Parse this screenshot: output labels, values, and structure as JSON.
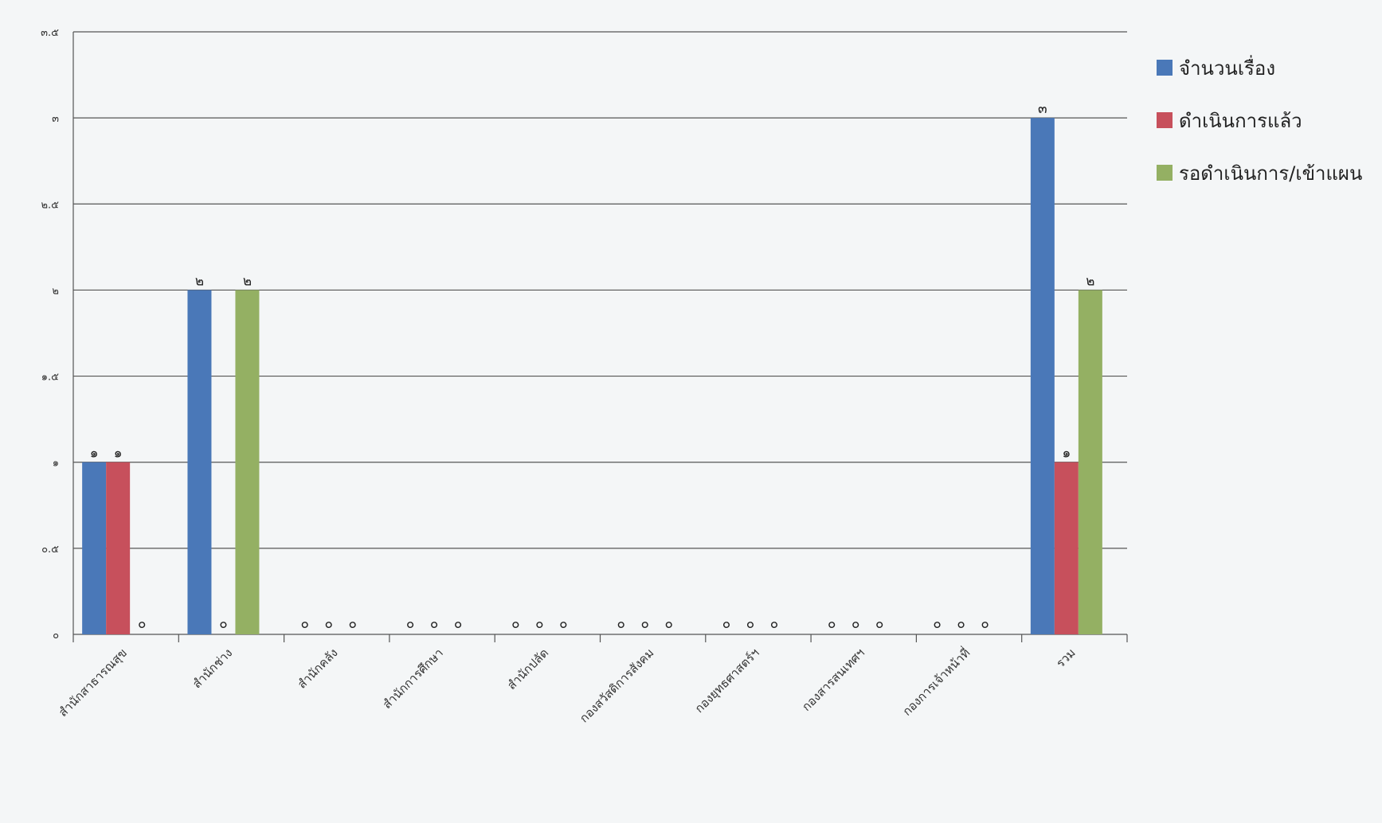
{
  "chart_data": {
    "type": "bar",
    "categories": [
      "สำนักสาธารณสุข",
      "สำนักช่าง",
      "สำนักคลัง",
      "สำนักการศึกษา",
      "สำนักปลัด",
      "กองสวัสดิการสังคม",
      "กองยุทธศาสตร์ฯ",
      "กองสารสนเทศฯ",
      "กองการเจ้าหน้าที่",
      "รวม"
    ],
    "series": [
      {
        "name": "จำนวนเรื่อง",
        "color": "#4a78b8",
        "values": [
          1,
          2,
          0,
          0,
          0,
          0,
          0,
          0,
          0,
          3
        ]
      },
      {
        "name": "ดำเนินการแล้ว",
        "color": "#c7505c",
        "values": [
          1,
          0,
          0,
          0,
          0,
          0,
          0,
          0,
          0,
          1
        ]
      },
      {
        "name": "รอดำเนินการ/เข้าแผน",
        "color": "#94b063",
        "values": [
          0,
          2,
          0,
          0,
          0,
          0,
          0,
          0,
          0,
          2
        ]
      }
    ],
    "data_labels": [
      [
        "๑",
        "๒",
        "๐",
        "๐",
        "๐",
        "๐",
        "๐",
        "๐",
        "๐",
        "๓"
      ],
      [
        "๑",
        "๐",
        "๐",
        "๐",
        "๐",
        "๐",
        "๐",
        "๐",
        "๐",
        "๑"
      ],
      [
        "๐",
        "๒",
        "๐",
        "๐",
        "๐",
        "๐",
        "๐",
        "๐",
        "๐",
        "๒"
      ]
    ],
    "y_ticks": [
      {
        "value": 0,
        "label": "๐"
      },
      {
        "value": 0.5,
        "label": "๐.๕"
      },
      {
        "value": 1,
        "label": "๑"
      },
      {
        "value": 1.5,
        "label": "๑.๕"
      },
      {
        "value": 2,
        "label": "๒"
      },
      {
        "value": 2.5,
        "label": "๒.๕"
      },
      {
        "value": 3,
        "label": "๓"
      },
      {
        "value": 3.5,
        "label": "๓.๕"
      }
    ],
    "ylim": [
      0,
      3.5
    ],
    "grid": true,
    "legend_position": "right",
    "title": "",
    "xlabel": "",
    "ylabel": ""
  }
}
